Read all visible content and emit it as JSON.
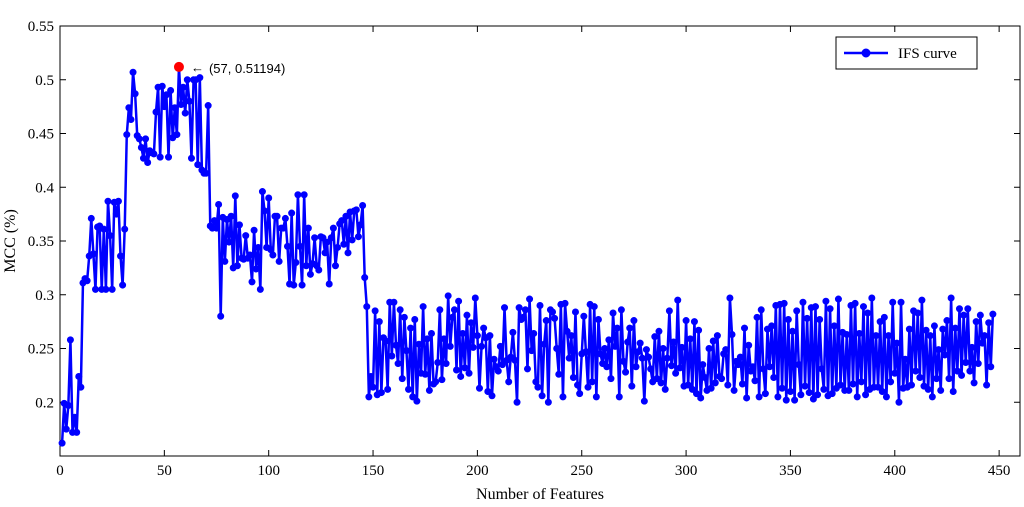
{
  "chart_data": {
    "type": "line",
    "xlabel": "Number  of Features",
    "ylabel": "MCC (%)",
    "xlim": [
      0,
      460
    ],
    "ylim": [
      0.15,
      0.55
    ],
    "xticks": [
      0,
      50,
      100,
      150,
      200,
      250,
      300,
      350,
      400,
      450
    ],
    "yticks": [
      0.2,
      0.25,
      0.3,
      0.35,
      0.4,
      0.45,
      0.5,
      0.55
    ],
    "grid": false,
    "legend_position": "top-right",
    "series": [
      {
        "name": "IFS curve",
        "color": "#0000ff",
        "marker": "circle",
        "x_start": 1,
        "x_step": 1,
        "values": [
          0.162,
          0.199,
          0.175,
          0.197,
          0.258,
          0.172,
          0.186,
          0.172,
          0.224,
          0.214,
          0.311,
          0.315,
          0.313,
          0.336,
          0.371,
          0.338,
          0.305,
          0.363,
          0.364,
          0.305,
          0.361,
          0.305,
          0.387,
          0.355,
          0.305,
          0.386,
          0.375,
          0.387,
          0.336,
          0.309,
          0.361,
          0.449,
          0.474,
          0.463,
          0.507,
          0.487,
          0.448,
          0.445,
          0.437,
          0.427,
          0.445,
          0.423,
          0.434,
          0.432,
          0.431,
          0.47,
          0.493,
          0.428,
          0.494,
          0.475,
          0.486,
          0.428,
          0.49,
          0.446,
          0.474,
          0.449,
          0.512,
          0.477,
          0.493,
          0.469,
          0.5,
          0.48,
          0.427,
          0.5,
          0.5,
          0.421,
          0.502,
          0.416,
          0.413,
          0.413,
          0.476,
          0.364,
          0.362,
          0.369,
          0.362,
          0.384,
          0.28,
          0.372,
          0.331,
          0.37,
          0.349,
          0.373,
          0.325,
          0.392,
          0.327,
          0.365,
          0.334,
          0.333,
          0.355,
          0.334,
          0.337,
          0.312,
          0.36,
          0.324,
          0.344,
          0.305,
          0.396,
          0.378,
          0.344,
          0.39,
          0.342,
          0.337,
          0.373,
          0.373,
          0.331,
          0.362,
          0.362,
          0.371,
          0.345,
          0.31,
          0.376,
          0.309,
          0.33,
          0.393,
          0.345,
          0.309,
          0.393,
          0.327,
          0.362,
          0.319,
          0.329,
          0.353,
          0.327,
          0.323,
          0.354,
          0.353,
          0.339,
          0.349,
          0.31,
          0.353,
          0.362,
          0.327,
          0.344,
          0.366,
          0.369,
          0.347,
          0.373,
          0.339,
          0.377,
          0.351,
          0.378,
          0.379,
          0.354,
          0.365,
          0.383,
          0.316,
          0.289,
          0.205,
          0.224,
          0.214,
          0.285,
          0.207,
          0.275,
          0.209,
          0.26,
          0.257,
          0.212,
          0.293,
          0.243,
          0.293,
          0.253,
          0.236,
          0.286,
          0.222,
          0.279,
          0.248,
          0.212,
          0.269,
          0.205,
          0.277,
          0.201,
          0.254,
          0.227,
          0.289,
          0.226,
          0.259,
          0.211,
          0.264,
          0.217,
          0.219,
          0.237,
          0.286,
          0.221,
          0.259,
          0.236,
          0.299,
          0.252,
          0.279,
          0.286,
          0.23,
          0.294,
          0.224,
          0.264,
          0.232,
          0.281,
          0.227,
          0.274,
          0.251,
          0.297,
          0.262,
          0.213,
          0.252,
          0.269,
          0.26,
          0.21,
          0.262,
          0.206,
          0.24,
          0.233,
          0.229,
          0.252,
          0.235,
          0.288,
          0.239,
          0.219,
          0.242,
          0.265,
          0.239,
          0.2,
          0.288,
          0.277,
          0.279,
          0.286,
          0.231,
          0.296,
          0.248,
          0.264,
          0.219,
          0.214,
          0.29,
          0.206,
          0.254,
          0.276,
          0.2,
          0.286,
          0.284,
          0.278,
          0.25,
          0.226,
          0.291,
          0.205,
          0.292,
          0.266,
          0.241,
          0.262,
          0.223,
          0.284,
          0.216,
          0.208,
          0.245,
          0.28,
          0.247,
          0.214,
          0.291,
          0.219,
          0.289,
          0.205,
          0.277,
          0.245,
          0.236,
          0.25,
          0.233,
          0.258,
          0.222,
          0.283,
          0.252,
          0.269,
          0.205,
          0.286,
          0.238,
          0.228,
          0.256,
          0.269,
          0.215,
          0.276,
          0.233,
          0.247,
          0.255,
          0.241,
          0.201,
          0.249,
          0.242,
          0.231,
          0.219,
          0.261,
          0.222,
          0.266,
          0.218,
          0.25,
          0.212,
          0.241,
          0.285,
          0.234,
          0.256,
          0.227,
          0.295,
          0.232,
          0.251,
          0.215,
          0.276,
          0.216,
          0.259,
          0.212,
          0.275,
          0.208,
          0.267,
          0.204,
          0.235,
          0.223,
          0.211,
          0.25,
          0.213,
          0.257,
          0.218,
          0.262,
          0.224,
          0.222,
          0.245,
          0.249,
          0.216,
          0.297,
          0.263,
          0.211,
          0.238,
          0.235,
          0.242,
          0.217,
          0.269,
          0.204,
          0.253,
          0.229,
          0.233,
          0.22,
          0.279,
          0.205,
          0.286,
          0.231,
          0.208,
          0.268,
          0.233,
          0.271,
          0.223,
          0.29,
          0.205,
          0.291,
          0.213,
          0.292,
          0.202,
          0.277,
          0.21,
          0.266,
          0.202,
          0.285,
          0.235,
          0.207,
          0.293,
          0.215,
          0.278,
          0.209,
          0.288,
          0.203,
          0.289,
          0.207,
          0.277,
          0.231,
          0.212,
          0.294,
          0.206,
          0.287,
          0.208,
          0.271,
          0.213,
          0.296,
          0.216,
          0.265,
          0.211,
          0.263,
          0.211,
          0.29,
          0.217,
          0.292,
          0.205,
          0.264,
          0.219,
          0.289,
          0.207,
          0.283,
          0.212,
          0.297,
          0.214,
          0.262,
          0.214,
          0.275,
          0.21,
          0.279,
          0.205,
          0.262,
          0.219,
          0.293,
          0.227,
          0.255,
          0.2,
          0.293,
          0.213,
          0.24,
          0.214,
          0.268,
          0.216,
          0.285,
          0.229,
          0.283,
          0.223,
          0.295,
          0.215,
          0.267,
          0.212,
          0.262,
          0.205,
          0.271,
          0.222,
          0.249,
          0.211,
          0.268,
          0.244,
          0.276,
          0.222,
          0.297,
          0.21,
          0.269,
          0.229,
          0.287,
          0.225,
          0.281,
          0.237,
          0.287,
          0.229,
          0.251,
          0.218,
          0.275,
          0.236,
          0.281,
          0.255,
          0.262,
          0.216,
          0.274,
          0.233,
          0.282
        ]
      }
    ],
    "highlight": {
      "x": 57,
      "y": 0.51194,
      "color": "#ff0000",
      "label": "(57, 0.51194)"
    }
  }
}
